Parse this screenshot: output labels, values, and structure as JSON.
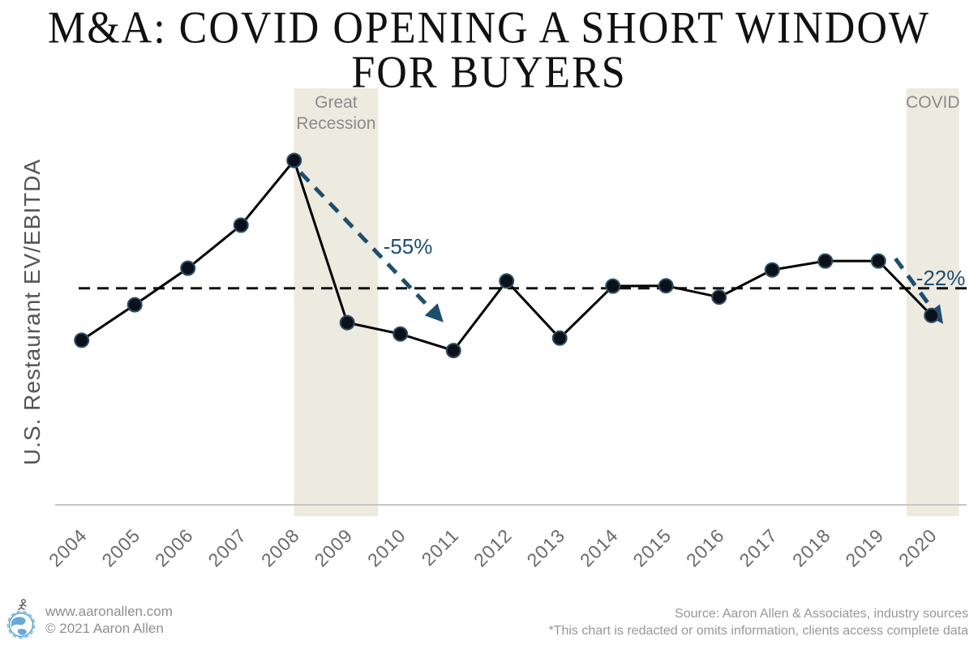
{
  "title": {
    "line1": "M&A: COVID OPENING A SHORT WINDOW",
    "line2": "FOR BUYERS"
  },
  "y_axis_label": "U.S. Restaurant EV/EBITDA",
  "chart_data": {
    "type": "line",
    "title": "M&A: COVID OPENING A SHORT WINDOW FOR BUYERS",
    "xlabel": "",
    "ylabel": "U.S. Restaurant EV/EBITDA",
    "y_axis_values_hidden": true,
    "value_scale_note": "values indexed, 2008 peak = 100 (y-axis numbers redacted in original)",
    "categories": [
      2004,
      2005,
      2006,
      2007,
      2008,
      2009,
      2010,
      2011,
      2012,
      2013,
      2014,
      2015,
      2016,
      2017,
      2018,
      2019,
      2020
    ],
    "series": [
      {
        "name": "U.S. Restaurant EV/EBITDA",
        "values": [
          47.8,
          58.1,
          68.7,
          81.2,
          100,
          52.9,
          49.6,
          44.8,
          65.0,
          48.4,
          63.5,
          63.6,
          60.3,
          68.2,
          70.8,
          70.8,
          55.0
        ]
      }
    ],
    "average_line_value": 62.9,
    "ylim": [
      0,
      120
    ],
    "grid": false,
    "legend": "none",
    "bands": [
      {
        "label": "Great Recession",
        "from": 2008.0,
        "to": 2009.58
      },
      {
        "label": "COVID",
        "from": 2019.53,
        "to": 2020.52
      }
    ],
    "annotations": [
      {
        "label": "-55%",
        "arrow_from": {
          "x": 2008.12,
          "y": 96.5
        },
        "arrow_to": {
          "x": 2010.73,
          "y": 54.3
        },
        "label_at": {
          "x": 2009.68,
          "y": 72.9
        }
      },
      {
        "label": "-22%",
        "arrow_from": {
          "x": 2019.32,
          "y": 71.5
        },
        "arrow_to": {
          "x": 2020.15,
          "y": 54.0
        },
        "label_at": {
          "x": 2019.71,
          "y": 63.8
        }
      }
    ]
  },
  "footer": {
    "website": "www.aaronallen.com",
    "copyright": "© 2021 Aaron Allen",
    "source": "Source: Aaron Allen & Associates, industry sources",
    "disclaimer": "*This chart is redacted or omits information, clients access complete data"
  },
  "colors": {
    "accent_navy": "#1d4e6d",
    "band_fill": "#edeae0",
    "series_line": "#000000",
    "point_fill": "#0b1019",
    "point_ring": "#2d4f66",
    "axis_line": "#c6c6c6",
    "average_line": "#111111",
    "tick_label": "#6a6a6a",
    "band_label": "#8a8a8a",
    "footer_text": "#8e8e8e",
    "logo_blue": "#4a9ad2"
  }
}
